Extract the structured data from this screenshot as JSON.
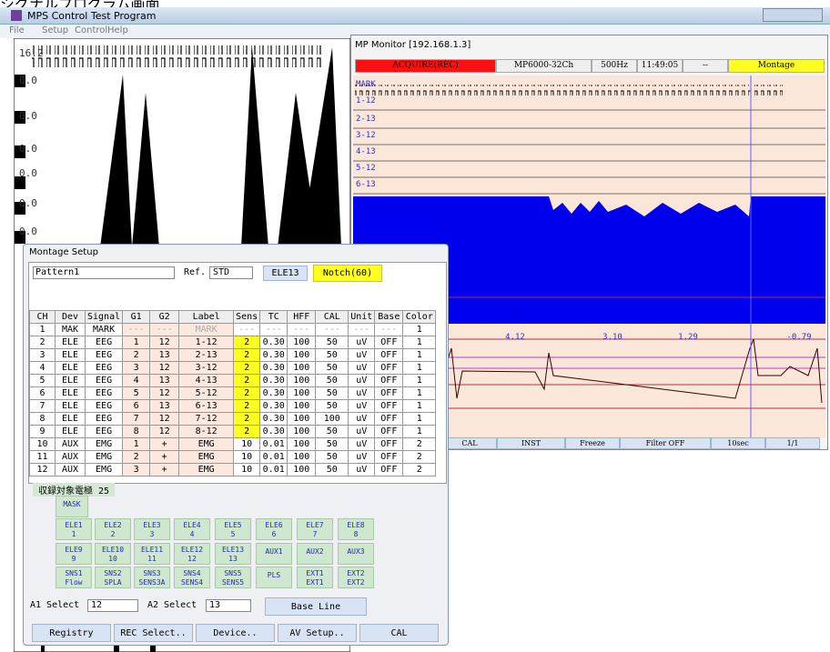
{
  "top_caption": "シグナルプログラム画面",
  "window": {
    "title": "MPS Control Test Program",
    "menu": [
      "File",
      "Setup",
      "Control",
      "Help"
    ]
  },
  "left_plot": {
    "labels": [
      "16.2",
      "0.0",
      "0.0",
      "0.0",
      "0.0",
      "0.0",
      "0.0"
    ]
  },
  "monitor": {
    "title": "MP Monitor  [192.168.1.3]",
    "status": [
      "ACQUIRE(REC)",
      "MP6000-32Ch",
      "500Hz",
      "11:49:05",
      "--",
      "Montage"
    ],
    "channels": [
      "MARK",
      "1-12",
      "2-13",
      "3-12",
      "4-13",
      "5-12",
      "6-13"
    ],
    "readouts": [
      "4.12",
      "3.10",
      "1.29",
      "-0.79"
    ],
    "buttons": [
      "CAL",
      "INST",
      "Freeze",
      "Filter OFF",
      "10sec",
      "1/1"
    ]
  },
  "montage": {
    "title": "Montage Setup",
    "pattern": "Pattern1",
    "ref_label": "Ref.",
    "ref": "STD",
    "ref_button": "ELE13",
    "notch": "Notch(60)",
    "table": {
      "header": [
        "CH",
        "Dev",
        "Signal",
        "G1",
        "G2",
        "Label",
        "Sens",
        "TC",
        "HFF",
        "CAL",
        "Unit",
        "Base",
        "Color"
      ],
      "rows": [
        [
          "1",
          "MAK",
          "MARK",
          "---",
          "---",
          "MARK",
          "---",
          "---",
          "---",
          "---",
          "---",
          "---",
          "1"
        ],
        [
          "2",
          "ELE",
          "EEG",
          "1",
          "12",
          "1-12",
          "2",
          "0.30",
          "100",
          "50",
          "uV",
          "OFF",
          "1"
        ],
        [
          "3",
          "ELE",
          "EEG",
          "2",
          "13",
          "2-13",
          "2",
          "0.30",
          "100",
          "50",
          "uV",
          "OFF",
          "1"
        ],
        [
          "4",
          "ELE",
          "EEG",
          "3",
          "12",
          "3-12",
          "2",
          "0.30",
          "100",
          "50",
          "uV",
          "OFF",
          "1"
        ],
        [
          "5",
          "ELE",
          "EEG",
          "4",
          "13",
          "4-13",
          "2",
          "0.30",
          "100",
          "50",
          "uV",
          "OFF",
          "1"
        ],
        [
          "6",
          "ELE",
          "EEG",
          "5",
          "12",
          "5-12",
          "2",
          "0.30",
          "100",
          "50",
          "uV",
          "OFF",
          "1"
        ],
        [
          "7",
          "ELE",
          "EEG",
          "6",
          "13",
          "6-13",
          "2",
          "0.30",
          "100",
          "50",
          "uV",
          "OFF",
          "1"
        ],
        [
          "8",
          "ELE",
          "EEG",
          "7",
          "12",
          "7-12",
          "2",
          "0.30",
          "100",
          "100",
          "uV",
          "OFF",
          "1"
        ],
        [
          "9",
          "ELE",
          "EEG",
          "8",
          "12",
          "8-12",
          "2",
          "0.30",
          "100",
          "50",
          "uV",
          "OFF",
          "1"
        ],
        [
          "10",
          "AUX",
          "EMG",
          "1",
          "+",
          "EMG",
          "10",
          "0.01",
          "100",
          "50",
          "uV",
          "OFF",
          "2"
        ],
        [
          "11",
          "AUX",
          "EMG",
          "2",
          "+",
          "EMG",
          "10",
          "0.01",
          "100",
          "50",
          "uV",
          "OFF",
          "2"
        ],
        [
          "12",
          "AUX",
          "EMG",
          "3",
          "+",
          "EMG",
          "10",
          "0.01",
          "100",
          "50",
          "uV",
          "OFF",
          "2"
        ]
      ]
    },
    "electrode_caption": "収録対象電極  25",
    "mask": "MASK",
    "electrodes": [
      [
        [
          "ELE1",
          "1"
        ],
        [
          "ELE2",
          "2"
        ],
        [
          "ELE3",
          "3"
        ],
        [
          "ELE4",
          "4"
        ],
        [
          "ELE5",
          "5"
        ],
        [
          "ELE6",
          "6"
        ],
        [
          "ELE7",
          "7"
        ],
        [
          "ELE8",
          "8"
        ]
      ],
      [
        [
          "ELE9",
          "9"
        ],
        [
          "ELE10",
          "10"
        ],
        [
          "ELE11",
          "11"
        ],
        [
          "ELE12",
          "12"
        ],
        [
          "ELE13",
          "13"
        ],
        [
          "AUX1"
        ],
        [
          "AUX2"
        ],
        [
          "AUX3"
        ]
      ],
      [
        [
          "SNS1",
          "Flow"
        ],
        [
          "SNS2",
          "SPLA"
        ],
        [
          "SNS3",
          "SENS3A"
        ],
        [
          "SNS4",
          "SENS4"
        ],
        [
          "SNS5",
          "SENS5"
        ],
        [
          "PLS"
        ],
        [
          "EXT1",
          "EXT1"
        ],
        [
          "EXT2",
          "EXT2"
        ]
      ]
    ],
    "a1_label": "A1 Select",
    "a1": "12",
    "a2_label": "A2 Select",
    "a2": "13",
    "baseline": "Base Line",
    "buttons": [
      "Registry",
      "REC Select..",
      "Device..",
      "AV Setup..",
      "CAL"
    ]
  }
}
